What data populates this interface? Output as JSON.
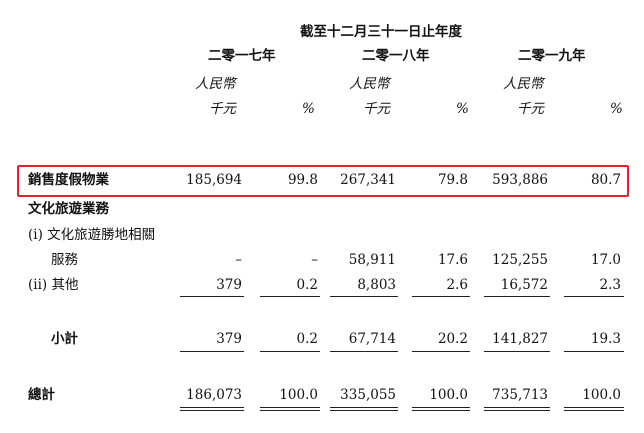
{
  "header": {
    "period": "截至十二月三十一日止年度",
    "years": [
      "二零一七年",
      "二零一八年",
      "二零一九年"
    ],
    "currency": "人民幣",
    "unit": "千元",
    "pct": "%"
  },
  "rows": {
    "resort": {
      "label": "銷售度假物業",
      "values": [
        "185,694",
        "99.8",
        "267,341",
        "79.8",
        "593,886",
        "80.7"
      ]
    },
    "culture_title": {
      "label": "文化旅遊業務"
    },
    "sub1_line1": {
      "label": "(i) 文化旅遊勝地相關"
    },
    "sub1_line2": {
      "label": "服務",
      "values": [
        "–",
        "–",
        "58,911",
        "17.6",
        "125,255",
        "17.0"
      ]
    },
    "sub2": {
      "label": "(ii) 其他",
      "values": [
        "379",
        "0.2",
        "8,803",
        "2.6",
        "16,572",
        "2.3"
      ]
    },
    "subtotal": {
      "label": "小計",
      "values": [
        "379",
        "0.2",
        "67,714",
        "20.2",
        "141,827",
        "19.3"
      ]
    },
    "total": {
      "label": "總計",
      "values": [
        "186,073",
        "100.0",
        "335,055",
        "100.0",
        "735,713",
        "100.0"
      ]
    }
  },
  "highlight_color": "#e0242b"
}
